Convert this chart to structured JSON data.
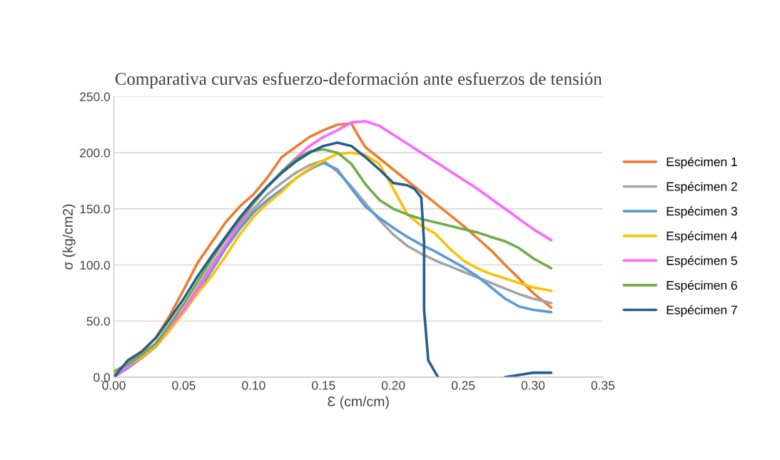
{
  "chart_data": {
    "type": "line",
    "title": "Comparativa curvas esfuerzo-deformación ante esfuerzos de tensión",
    "xlabel": "Ɛ (cm/cm)",
    "ylabel": "σ (kg/cm2)",
    "xlim": [
      0,
      0.35
    ],
    "xticks": [
      {
        "value": 0,
        "label": "0.00"
      },
      {
        "value": 0.05,
        "label": "0.05"
      },
      {
        "value": 0.1,
        "label": "0.10"
      },
      {
        "value": 0.15,
        "label": "0.15"
      },
      {
        "value": 0.2,
        "label": "0.20"
      },
      {
        "value": 0.25,
        "label": "0.25"
      },
      {
        "value": 0.3,
        "label": "0.30"
      },
      {
        "value": 0.35,
        "label": "0.35"
      }
    ],
    "ylim": [
      0,
      250
    ],
    "yticks": [
      {
        "value": 0,
        "label": "0.0"
      },
      {
        "value": 50,
        "label": "50.0"
      },
      {
        "value": 100,
        "label": "100.0"
      },
      {
        "value": 150,
        "label": "150.0"
      },
      {
        "value": 200,
        "label": "200.0"
      },
      {
        "value": 250,
        "label": "250.0"
      }
    ],
    "grid": "y",
    "legend": "right",
    "marker": "none",
    "line_style": "solid",
    "x": [
      0,
      0.01,
      0.02,
      0.03,
      0.04,
      0.05,
      0.06,
      0.07,
      0.08,
      0.09,
      0.1,
      0.11,
      0.12,
      0.13,
      0.14,
      0.15,
      0.16,
      0.17,
      0.18,
      0.19,
      0.2,
      0.21,
      0.22,
      0.23,
      0.24,
      0.25,
      0.26,
      0.27,
      0.28,
      0.29,
      0.3,
      0.313
    ],
    "series": [
      {
        "name": "Espécimen 1",
        "color": "#ed7d31",
        "x": [
          0,
          0.01,
          0.02,
          0.03,
          0.04,
          0.05,
          0.06,
          0.07,
          0.08,
          0.09,
          0.1,
          0.11,
          0.12,
          0.13,
          0.14,
          0.15,
          0.16,
          0.17,
          0.175,
          0.18,
          0.19,
          0.2,
          0.21,
          0.22,
          0.23,
          0.24,
          0.25,
          0.26,
          0.27,
          0.28,
          0.29,
          0.3,
          0.313
        ],
        "values": [
          0,
          12,
          22,
          35,
          55,
          78,
          102,
          120,
          138,
          152,
          163,
          178,
          196,
          205,
          214,
          220,
          225,
          226,
          215,
          205,
          195,
          185,
          175,
          165,
          155,
          145,
          135,
          124,
          113,
          100,
          88,
          75,
          62
        ]
      },
      {
        "name": "Espécimen 2",
        "color": "#a5a5a5",
        "values": [
          0,
          8,
          17,
          27,
          42,
          60,
          80,
          100,
          118,
          135,
          150,
          163,
          173,
          182,
          189,
          193,
          183,
          170,
          155,
          140,
          127,
          117,
          110,
          104,
          99,
          94,
          89,
          84,
          79,
          74,
          70,
          66
        ]
      },
      {
        "name": "Espécimen 3",
        "color": "#5b9bd5",
        "values": [
          0,
          9,
          18,
          28,
          43,
          58,
          75,
          95,
          115,
          132,
          147,
          158,
          167,
          177,
          185,
          191,
          185,
          168,
          152,
          142,
          133,
          125,
          118,
          112,
          105,
          98,
          90,
          80,
          70,
          63,
          60,
          58
        ]
      },
      {
        "name": "Espécimen 4",
        "color": "#ffc000",
        "values": [
          3,
          10,
          18,
          28,
          42,
          58,
          75,
          90,
          108,
          127,
          143,
          155,
          165,
          177,
          186,
          193,
          199,
          200,
          198,
          190,
          168,
          145,
          135,
          128,
          115,
          104,
          97,
          92,
          88,
          84,
          80,
          77
        ]
      },
      {
        "name": "Espécimen 5",
        "color": "#ff66ff",
        "values": [
          0,
          10,
          20,
          30,
          45,
          60,
          78,
          98,
          118,
          137,
          155,
          170,
          183,
          195,
          206,
          214,
          220,
          227,
          228,
          224,
          216,
          208,
          200,
          192,
          184,
          176,
          168,
          159,
          150,
          141,
          132,
          122
        ]
      },
      {
        "name": "Espécimen 6",
        "color": "#70ad47",
        "values": [
          5,
          12,
          20,
          30,
          47,
          65,
          85,
          105,
          123,
          140,
          155,
          170,
          183,
          194,
          201,
          203,
          200,
          190,
          172,
          158,
          150,
          145,
          141,
          138,
          135,
          132,
          129,
          125,
          121,
          115,
          106,
          97
        ]
      },
      {
        "name": "Espécimen 7",
        "color": "#255e91",
        "x": [
          0,
          0.01,
          0.02,
          0.03,
          0.04,
          0.05,
          0.06,
          0.07,
          0.08,
          0.09,
          0.1,
          0.11,
          0.12,
          0.13,
          0.14,
          0.15,
          0.16,
          0.17,
          0.18,
          0.19,
          0.2,
          0.21,
          0.215,
          0.22,
          0.222,
          0.222,
          0.225,
          0.232,
          0.26,
          0.28,
          0.29,
          0.3,
          0.313
        ],
        "values": [
          0,
          15,
          23,
          35,
          52,
          70,
          90,
          108,
          125,
          142,
          157,
          170,
          182,
          192,
          200,
          206,
          209,
          206,
          196,
          185,
          173,
          171,
          168,
          160,
          120,
          60,
          15,
          0,
          null,
          0,
          2,
          4,
          4
        ]
      }
    ]
  }
}
